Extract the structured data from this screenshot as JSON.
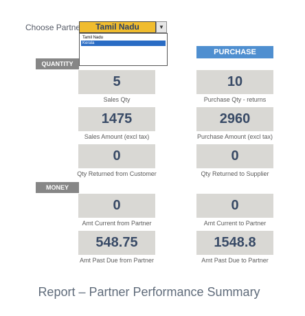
{
  "partner": {
    "label": "Choose Partner",
    "selected": "Tamil Nadu",
    "options": [
      "Tamil Nadu",
      "Kerala"
    ],
    "highlighted_option": "Kerala"
  },
  "sections": {
    "quantity": "QUANTITY",
    "purchase": "PURCHASE",
    "money": "MONEY"
  },
  "metrics": {
    "sales_qty": {
      "value": "5",
      "label": "Sales Qty"
    },
    "purchase_qty": {
      "value": "10",
      "label": "Purchase Qty - returns"
    },
    "sales_amount": {
      "value": "1475",
      "label": "Sales Amount (excl tax)"
    },
    "purchase_amount": {
      "value": "2960",
      "label": "Purchase Amount (excl tax)"
    },
    "qty_returned_customer": {
      "value": "0",
      "label": "Qty Returned from Customer"
    },
    "qty_returned_supplier": {
      "value": "0",
      "label": "Qty Returned to Supplier"
    },
    "amt_current_from": {
      "value": "0",
      "label": "Amt Current from Partner"
    },
    "amt_current_to": {
      "value": "0",
      "label": "Amt Current to Partner"
    },
    "amt_past_due_from": {
      "value": "548.75",
      "label": "Amt Past Due from Partner"
    },
    "amt_past_due_to": {
      "value": "1548.8",
      "label": "Amt Past Due to Partner"
    }
  },
  "report_title": "Report – Partner Performance Summary",
  "colors": {
    "combo_bg": "#f0bc2e",
    "purchase_header": "#4f8fd0",
    "section_header": "#868686",
    "value_box": "#d9d8d4",
    "value_text": "#384a66",
    "selection": "#2a6cc4"
  }
}
